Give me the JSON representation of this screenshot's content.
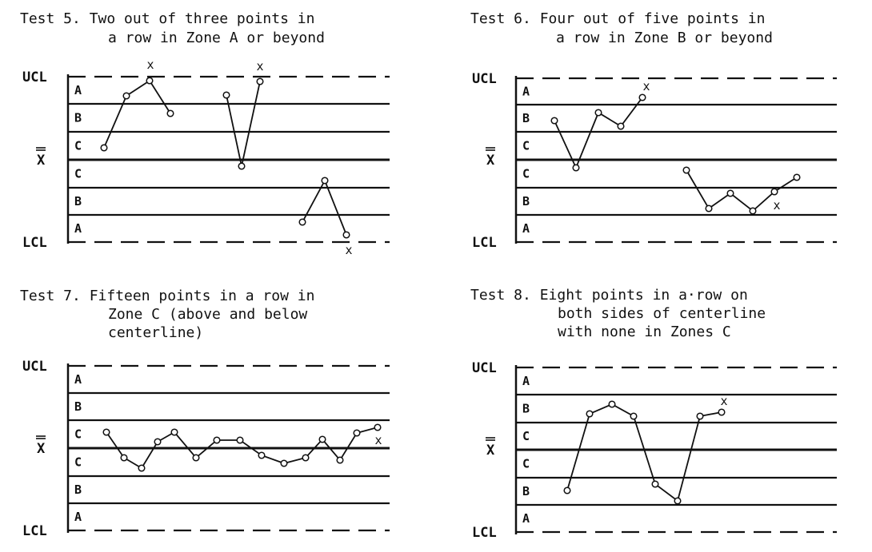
{
  "panels": [
    {
      "title_lines": [
        "Test 5. Two out of three points in",
        "a row in Zone A or beyond"
      ],
      "ucl_label": "UCL",
      "center_label": "X",
      "lcl_label": "LCL",
      "zones": [
        "A",
        "B",
        "C",
        "C",
        "B",
        "A"
      ],
      "segments": [
        [
          [
            130,
            185
          ],
          [
            158,
            120
          ],
          [
            187,
            101
          ],
          [
            213,
            142
          ]
        ],
        [
          [
            283,
            119
          ],
          [
            302,
            208
          ],
          [
            325,
            102
          ]
        ],
        [
          [
            378,
            278
          ],
          [
            406,
            226
          ],
          [
            433,
            294
          ]
        ]
      ],
      "x_marks": [
        "x",
        "x",
        "x"
      ]
    },
    {
      "title_lines": [
        "Test 6. Four out of five points in",
        "a row in Zone B or beyond"
      ],
      "ucl_label": "UCL",
      "center_label": "X",
      "lcl_label": "LCL",
      "zones": [
        "A",
        "B",
        "C",
        "C",
        "B",
        "A"
      ],
      "segments": [
        [
          [
            693,
            151
          ],
          [
            720,
            210
          ],
          [
            748,
            141
          ],
          [
            776,
            158
          ],
          [
            803,
            122
          ]
        ],
        [
          [
            858,
            213
          ],
          [
            886,
            261
          ],
          [
            913,
            242
          ],
          [
            941,
            264
          ],
          [
            968,
            240
          ],
          [
            996,
            222
          ]
        ]
      ],
      "x_marks": [
        "x",
        "x"
      ]
    },
    {
      "title_lines": [
        "Test 7. Fifteen points in a row in",
        "Zone C (above and below",
        "centerline)"
      ],
      "ucl_label": "UCL",
      "center_label": "X",
      "lcl_label": "LCL",
      "zones": [
        "A",
        "B",
        "C",
        "C",
        "B",
        "A"
      ],
      "segments": [
        [
          [
            133,
            541
          ],
          [
            155,
            573
          ],
          [
            177,
            586
          ],
          [
            197,
            553
          ],
          [
            218,
            541
          ],
          [
            245,
            573
          ],
          [
            271,
            551
          ],
          [
            300,
            551
          ],
          [
            327,
            570
          ],
          [
            355,
            580
          ],
          [
            382,
            573
          ],
          [
            403,
            550
          ],
          [
            425,
            576
          ],
          [
            446,
            542
          ],
          [
            472,
            535
          ]
        ]
      ],
      "x_marks": [
        "x"
      ]
    },
    {
      "title_lines": [
        "Test 8. Eight points in a·row on",
        "both sides of centerline",
        "with none in Zones C"
      ],
      "ucl_label": "UCL",
      "center_label": "X",
      "lcl_label": "LCL",
      "zones": [
        "A",
        "B",
        "C",
        "C",
        "B",
        "A"
      ],
      "segments": [
        [
          [
            709,
            614
          ],
          [
            737,
            518
          ],
          [
            765,
            506
          ],
          [
            792,
            521
          ],
          [
            819,
            606
          ],
          [
            847,
            627
          ],
          [
            875,
            521
          ],
          [
            902,
            516
          ]
        ]
      ],
      "x_marks": [
        "x"
      ]
    }
  ]
}
